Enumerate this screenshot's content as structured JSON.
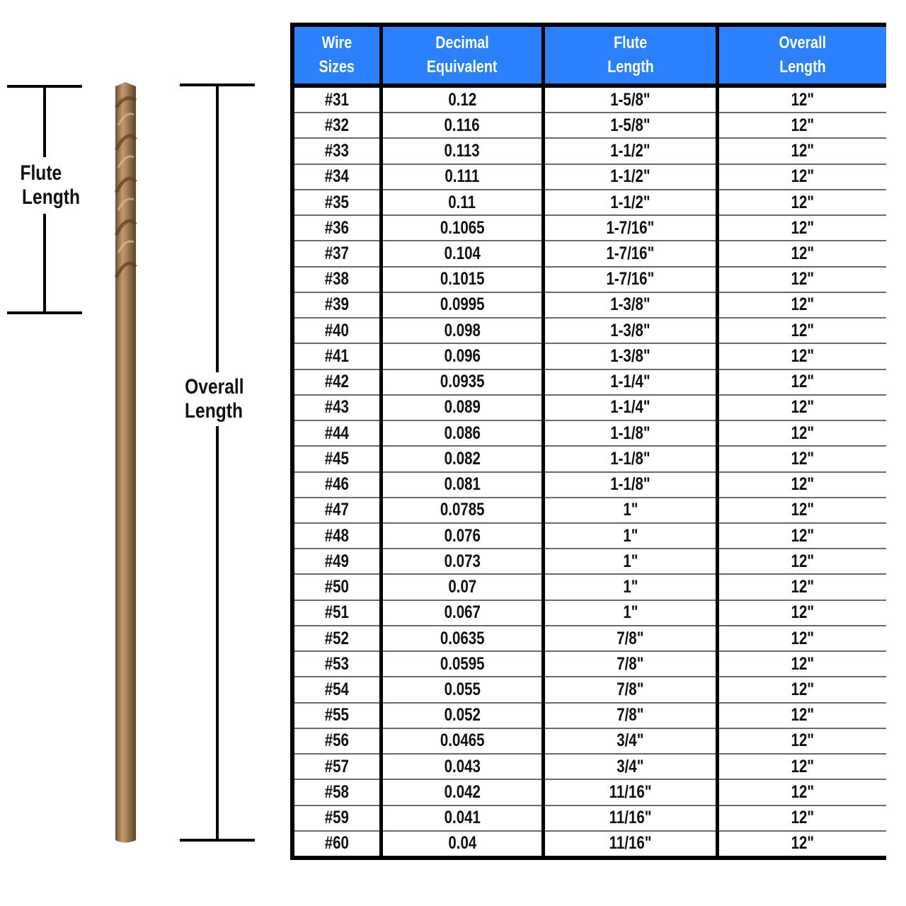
{
  "annotations": {
    "flute_label": [
      "Flute",
      "Length"
    ],
    "overall_label": [
      "Overall",
      "Length"
    ]
  },
  "colors": {
    "header_bg": "#2b80fb",
    "drill_bit": "#a98158"
  },
  "table": {
    "headers": [
      [
        "Wire",
        "Sizes"
      ],
      [
        "Decimal",
        "Equivalent"
      ],
      [
        "Flute",
        "Length"
      ],
      [
        "Overall",
        "Length"
      ]
    ],
    "rows": [
      [
        "#31",
        "0.12",
        "1-5/8\"",
        "12\""
      ],
      [
        "#32",
        "0.116",
        "1-5/8\"",
        "12\""
      ],
      [
        "#33",
        "0.113",
        "1-1/2\"",
        "12\""
      ],
      [
        "#34",
        "0.111",
        "1-1/2\"",
        "12\""
      ],
      [
        "#35",
        "0.11",
        "1-1/2\"",
        "12\""
      ],
      [
        "#36",
        "0.1065",
        "1-7/16\"",
        "12\""
      ],
      [
        "#37",
        "0.104",
        "1-7/16\"",
        "12\""
      ],
      [
        "#38",
        "0.1015",
        "1-7/16\"",
        "12\""
      ],
      [
        "#39",
        "0.0995",
        "1-3/8\"",
        "12\""
      ],
      [
        "#40",
        "0.098",
        "1-3/8\"",
        "12\""
      ],
      [
        "#41",
        "0.096",
        "1-3/8\"",
        "12\""
      ],
      [
        "#42",
        "0.0935",
        "1-1/4\"",
        "12\""
      ],
      [
        "#43",
        "0.089",
        "1-1/4\"",
        "12\""
      ],
      [
        "#44",
        "0.086",
        "1-1/8\"",
        "12\""
      ],
      [
        "#45",
        "0.082",
        "1-1/8\"",
        "12\""
      ],
      [
        "#46",
        "0.081",
        "1-1/8\"",
        "12\""
      ],
      [
        "#47",
        "0.0785",
        "1\"",
        "12\""
      ],
      [
        "#48",
        "0.076",
        "1\"",
        "12\""
      ],
      [
        "#49",
        "0.073",
        "1\"",
        "12\""
      ],
      [
        "#50",
        "0.07",
        "1\"",
        "12\""
      ],
      [
        "#51",
        "0.067",
        "1\"",
        "12\""
      ],
      [
        "#52",
        "0.0635",
        "7/8\"",
        "12\""
      ],
      [
        "#53",
        "0.0595",
        "7/8\"",
        "12\""
      ],
      [
        "#54",
        "0.055",
        "7/8\"",
        "12\""
      ],
      [
        "#55",
        "0.052",
        "7/8\"",
        "12\""
      ],
      [
        "#56",
        "0.0465",
        "3/4\"",
        "12\""
      ],
      [
        "#57",
        "0.043",
        "3/4\"",
        "12\""
      ],
      [
        "#58",
        "0.042",
        "11/16\"",
        "12\""
      ],
      [
        "#59",
        "0.041",
        "11/16\"",
        "12\""
      ],
      [
        "#60",
        "0.04",
        "11/16\"",
        "12\""
      ]
    ]
  }
}
